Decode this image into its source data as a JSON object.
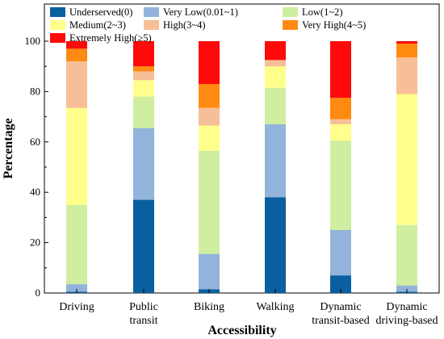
{
  "chart_data": {
    "type": "bar",
    "stacked": true,
    "xlabel": "Accessibility",
    "ylabel": "Percentage",
    "ylim": [
      0,
      100
    ],
    "yticks": [
      0,
      20,
      40,
      60,
      80,
      100
    ],
    "categories": [
      [
        "Driving"
      ],
      [
        "Public",
        "transit"
      ],
      [
        "Biking"
      ],
      [
        "Walking"
      ],
      [
        "Dynamic",
        "transit-based"
      ],
      [
        "Dynamic",
        "driving-based"
      ]
    ],
    "legend": {
      "placement": "top",
      "columns": 3
    },
    "series": [
      {
        "name": "Underserved(0)",
        "color": "#0a5fa0",
        "values": [
          0.5,
          37,
          1.5,
          38,
          7,
          0.5
        ]
      },
      {
        "name": "Very Low(0.01~1)",
        "color": "#92b4da",
        "values": [
          3,
          28.5,
          14,
          29,
          18,
          2.5
        ]
      },
      {
        "name": "Low(1~2)",
        "color": "#cfeea0",
        "values": [
          31.5,
          12.5,
          41,
          14.5,
          35.5,
          24
        ]
      },
      {
        "name": "Medium(2~3)",
        "color": "#ffff8c",
        "values": [
          38.5,
          6.5,
          10,
          8.5,
          6.5,
          52
        ]
      },
      {
        "name": "High(3~4)",
        "color": "#f7bf98",
        "values": [
          18.5,
          3.5,
          7,
          2.5,
          2,
          14.5
        ]
      },
      {
        "name": "Very High(4~5)",
        "color": "#ff8a12",
        "values": [
          5,
          2,
          9.5,
          0,
          8.5,
          5.5
        ]
      },
      {
        "name": "Extremely High(≥5)",
        "color": "#ff0a0a",
        "values": [
          3,
          10,
          17,
          7.5,
          22.5,
          1
        ]
      }
    ]
  }
}
